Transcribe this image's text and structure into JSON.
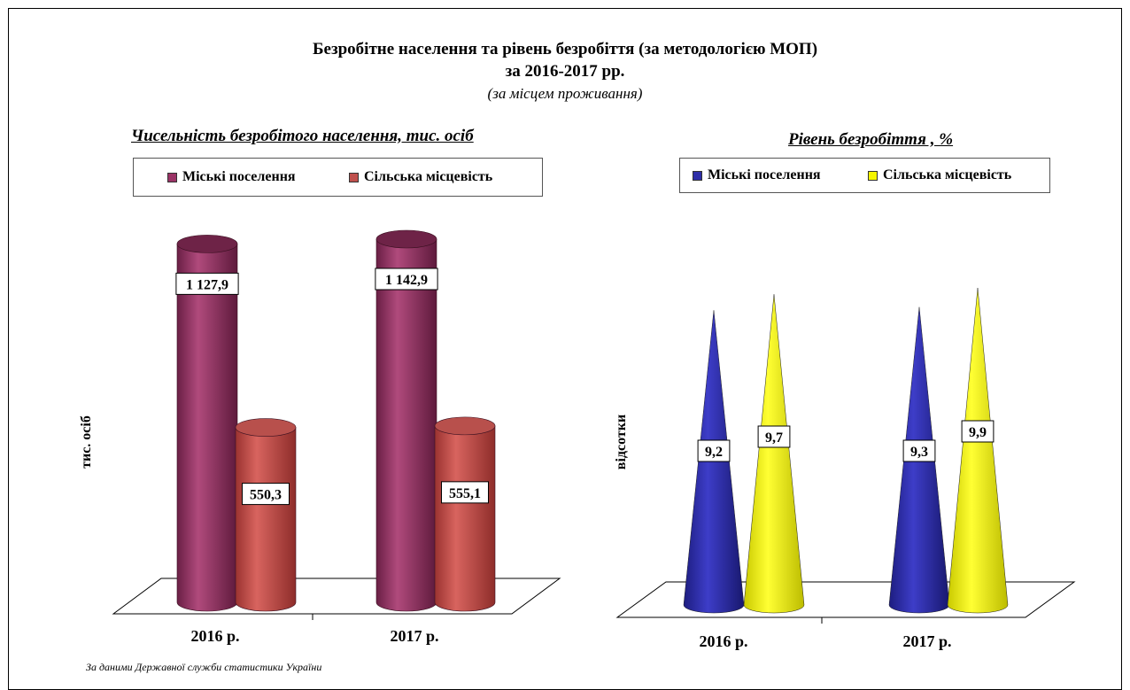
{
  "title": "Безробітне населення та рівень безробіття (за методологією МОП)",
  "title_line2": "за 2016-2017 рр.",
  "subtitle": "(за місцем проживання)",
  "source": "За даними Державної служби статистики України",
  "chart_data": [
    {
      "type": "bar",
      "title": "Чисельність безробітого населення, тис. осіб",
      "ylabel": "тис. осіб",
      "categories": [
        "2016 р.",
        "2017 р."
      ],
      "series": [
        {
          "name": "Міські поселення",
          "values": [
            1127.9,
            1142.9
          ],
          "labels": [
            "1 127,9",
            "1 142,9"
          ],
          "color": "#9B3366"
        },
        {
          "name": "Сільська місцевість",
          "values": [
            550.3,
            555.1
          ],
          "labels": [
            "550,3",
            "555,1"
          ],
          "color": "#C0504D"
        }
      ],
      "legend": "top",
      "grid": false
    },
    {
      "type": "bar",
      "title": "Рівень безробіття , %",
      "ylabel": "відсотки",
      "categories": [
        "2016 р.",
        "2017 р."
      ],
      "series": [
        {
          "name": "Міські поселення",
          "values": [
            9.2,
            9.3
          ],
          "labels": [
            "9,2",
            "9,3"
          ],
          "color": "#2E2EA8"
        },
        {
          "name": "Сільська місцевість",
          "values": [
            9.7,
            9.9
          ],
          "labels": [
            "9,7",
            "9,9"
          ],
          "color": "#F5F500"
        }
      ],
      "legend": "top",
      "grid": false
    }
  ]
}
